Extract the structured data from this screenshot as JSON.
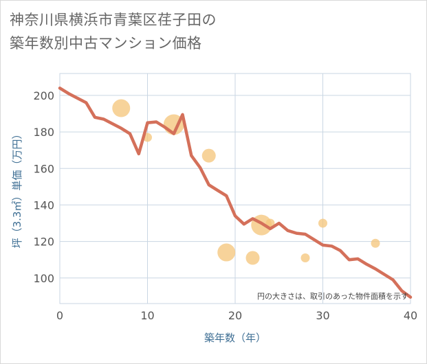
{
  "chart_data": {
    "type": "scatter",
    "title_lines": [
      "神奈川県横浜市青葉区荏子田の",
      "築年数別中古マンション価格"
    ],
    "xlabel": "築年数（年）",
    "ylabel": "坪（3.3㎡）単価（万円）",
    "xlim": [
      0,
      40
    ],
    "ylim": [
      86,
      212
    ],
    "xticks": [
      0,
      10,
      20,
      30,
      40
    ],
    "yticks": [
      100,
      120,
      140,
      160,
      180,
      200
    ],
    "annotation": "円の大きさは、取引のあった物件面積を示す",
    "colors": {
      "line": "#d4705a",
      "bubble": "#f5c77e",
      "grid": "#c9d6e3",
      "axis_text": "#3f6f94"
    },
    "bubbles": [
      {
        "x": 7,
        "y": 193,
        "size": 3
      },
      {
        "x": 10,
        "y": 177,
        "size": 1
      },
      {
        "x": 13,
        "y": 184,
        "size": 4
      },
      {
        "x": 17,
        "y": 167,
        "size": 2
      },
      {
        "x": 19,
        "y": 114,
        "size": 3
      },
      {
        "x": 22,
        "y": 111,
        "size": 2
      },
      {
        "x": 23,
        "y": 129,
        "size": 4
      },
      {
        "x": 24,
        "y": 130,
        "size": 1
      },
      {
        "x": 28,
        "y": 111,
        "size": 1
      },
      {
        "x": 30,
        "y": 130,
        "size": 1
      },
      {
        "x": 36,
        "y": 119,
        "size": 1
      }
    ],
    "trend_line": {
      "x": [
        0,
        1,
        2,
        3,
        4,
        5,
        6,
        7,
        8,
        9,
        10,
        11,
        12,
        13,
        14,
        15,
        16,
        17,
        18,
        19,
        20,
        21,
        22,
        23,
        24,
        25,
        26,
        27,
        28,
        29,
        30,
        31,
        32,
        33,
        34,
        35,
        36,
        37,
        38,
        39,
        40
      ],
      "y": [
        204,
        201,
        198.5,
        196,
        188,
        187,
        184.5,
        182,
        179,
        168,
        185,
        185.5,
        182.5,
        179,
        189.5,
        167,
        160.5,
        151,
        148,
        145,
        134,
        129.5,
        132.5,
        130,
        127,
        130,
        126,
        124.5,
        124,
        121,
        118,
        117.5,
        115,
        110,
        110.5,
        107.5,
        105,
        102,
        99,
        93,
        89.5
      ]
    }
  }
}
